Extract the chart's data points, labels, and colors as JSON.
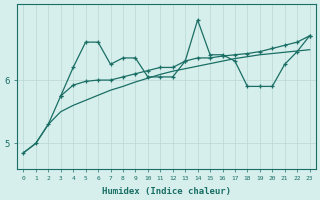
{
  "xlabel": "Humidex (Indice chaleur)",
  "x_values": [
    0,
    1,
    2,
    3,
    4,
    5,
    6,
    7,
    8,
    9,
    10,
    11,
    12,
    13,
    14,
    15,
    16,
    17,
    18,
    19,
    20,
    21,
    22,
    23
  ],
  "line_top": [
    4.85,
    5.0,
    5.3,
    5.75,
    6.2,
    6.6,
    6.6,
    6.25,
    6.35,
    6.35,
    6.05,
    6.05,
    6.05,
    6.3,
    6.95,
    6.4,
    6.4,
    6.3,
    5.9,
    5.9,
    5.9,
    6.25,
    6.45,
    6.7
  ],
  "line_mid": [
    null,
    null,
    null,
    5.75,
    5.92,
    5.98,
    6.0,
    6.0,
    6.05,
    6.1,
    6.15,
    6.2,
    6.2,
    6.3,
    6.35,
    6.35,
    6.38,
    6.4,
    6.42,
    6.45,
    6.5,
    6.55,
    6.6,
    6.7
  ],
  "line_bot": [
    4.85,
    5.0,
    5.3,
    5.5,
    5.6,
    5.68,
    5.76,
    5.84,
    5.9,
    5.97,
    6.03,
    6.09,
    6.14,
    6.18,
    6.22,
    6.26,
    6.3,
    6.34,
    6.37,
    6.4,
    6.42,
    6.44,
    6.46,
    6.48
  ],
  "bg_color": "#d6efed",
  "line_color": "#1a6e64",
  "grid_color": "#b8d8d4",
  "ylim": [
    4.6,
    7.2
  ],
  "yticks": [
    5,
    6
  ],
  "xlim": [
    -0.5,
    23.5
  ],
  "axis_color": "#1a6e64",
  "xlabel_fontsize": 6.5,
  "ytick_fontsize": 6.5,
  "xtick_fontsize": 4.5
}
